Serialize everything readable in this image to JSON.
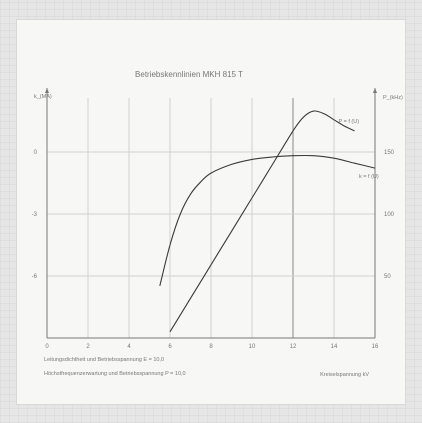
{
  "chart_data": {
    "type": "line",
    "title": "Betriebskennlinien MKH 815 T",
    "x_ticks": [
      "0",
      "2",
      "4",
      "6",
      "8",
      "10",
      "12",
      "14",
      "16"
    ],
    "xlim": [
      0,
      16
    ],
    "xlabel": "Kreiselspannung kV",
    "y_left_label": "k_(MA)",
    "y_left_ticks": [
      "0",
      "-3",
      "-6"
    ],
    "y_right_label": "P_(kHz)",
    "y_right_ticks": [
      "150",
      "100",
      "50"
    ],
    "y_right_lim": [
      0,
      200
    ],
    "notes": [
      "Leitungsdichtheit und Betriebsspannung E = 10,0",
      "Höchstfrequenzerwartung und Betriebsspannung P = 10,0"
    ],
    "series": [
      {
        "name": "P = f (U)",
        "x": [
          6,
          7,
          8,
          9,
          10,
          11,
          12,
          12.5,
          13,
          13.5,
          14,
          14.5,
          15
        ],
        "y": [
          5,
          32,
          59,
          86,
          113,
          140,
          167,
          178,
          183,
          181,
          176,
          171,
          167
        ]
      },
      {
        "name": "k = f (U)",
        "x": [
          5.5,
          6,
          6.5,
          7,
          7.5,
          8,
          9,
          10,
          11,
          12,
          13,
          14,
          15,
          16
        ],
        "y": [
          42,
          75,
          100,
          116,
          126,
          133,
          140,
          144,
          146,
          147,
          147,
          145,
          141,
          137
        ]
      }
    ],
    "grid": true
  }
}
